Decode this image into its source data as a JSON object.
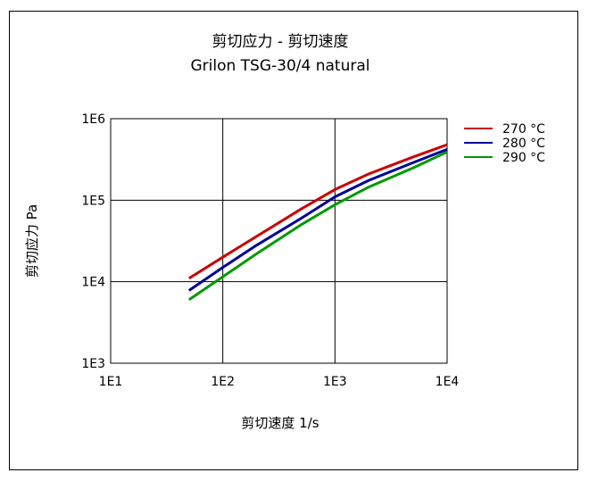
{
  "chart_data": {
    "type": "line",
    "title": "剪切应力 - 剪切速度",
    "subtitle": "Grilon TSG-30/4 natural",
    "xlabel": "剪切速度 1/s",
    "ylabel": "剪切应力 Pa",
    "x_scale": "log",
    "y_scale": "log",
    "xlim": [
      10,
      10000
    ],
    "ylim": [
      1000,
      1000000
    ],
    "x_ticks": [
      {
        "value": 10,
        "label": "1E1"
      },
      {
        "value": 100,
        "label": "1E2"
      },
      {
        "value": 1000,
        "label": "1E3"
      },
      {
        "value": 10000,
        "label": "1E4"
      }
    ],
    "y_ticks": [
      {
        "value": 1000,
        "label": "1E3"
      },
      {
        "value": 10000,
        "label": "1E4"
      },
      {
        "value": 100000,
        "label": "1E5"
      },
      {
        "value": 1000000,
        "label": "1E6"
      }
    ],
    "grid": true,
    "legend_position": "right-top",
    "series": [
      {
        "name": "270 °C",
        "color": "#cc0000",
        "x": [
          50,
          100,
          200,
          500,
          1000,
          2000,
          5000,
          10000
        ],
        "y": [
          11000,
          20000,
          36000,
          78000,
          135000,
          210000,
          340000,
          480000
        ]
      },
      {
        "name": "280 °C",
        "color": "#000099",
        "x": [
          50,
          100,
          200,
          500,
          1000,
          2000,
          5000,
          10000
        ],
        "y": [
          7800,
          15000,
          28000,
          60000,
          110000,
          175000,
          290000,
          420000
        ]
      },
      {
        "name": "290 °C",
        "color": "#009900",
        "x": [
          50,
          100,
          200,
          500,
          1000,
          2000,
          5000,
          10000
        ],
        "y": [
          6000,
          11500,
          22000,
          50000,
          88000,
          145000,
          250000,
          390000
        ]
      }
    ]
  }
}
